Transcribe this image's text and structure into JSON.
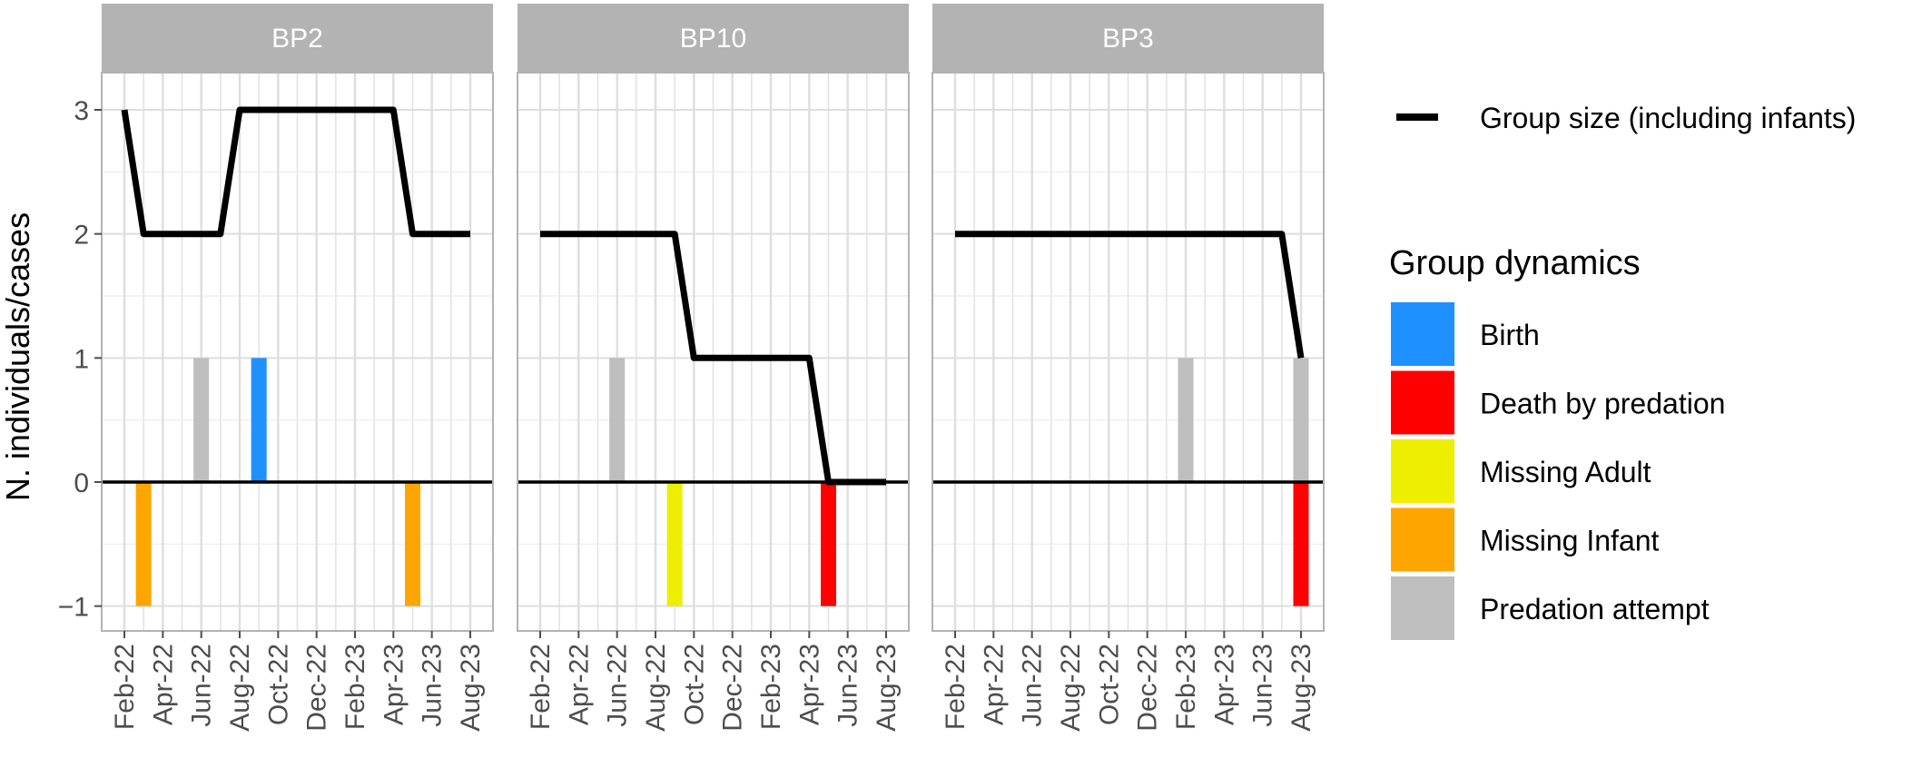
{
  "chart_data": {
    "type": "line",
    "ylabel": "N. individuals/cases",
    "ylim": [
      -1.2,
      3.3
    ],
    "y_ticks": [
      {
        "value": 3,
        "label": "3"
      },
      {
        "value": 2,
        "label": "2"
      },
      {
        "value": 1,
        "label": "1"
      },
      {
        "value": 0,
        "label": "0"
      },
      {
        "value": -1,
        "label": "−1"
      }
    ],
    "x_ticks": [
      {
        "value": "2022-02",
        "label": "Feb-22"
      },
      {
        "value": "2022-04",
        "label": "Apr-22"
      },
      {
        "value": "2022-06",
        "label": "Jun-22"
      },
      {
        "value": "2022-08",
        "label": "Aug-22"
      },
      {
        "value": "2022-10",
        "label": "Oct-22"
      },
      {
        "value": "2022-12",
        "label": "Dec-22"
      },
      {
        "value": "2023-02",
        "label": "Feb-23"
      },
      {
        "value": "2023-04",
        "label": "Apr-23"
      },
      {
        "value": "2023-06",
        "label": "Jun-23"
      },
      {
        "value": "2023-08",
        "label": "Aug-23"
      }
    ],
    "grid": true,
    "legend_position": "right",
    "line_legend_label": "Group size (including infants)",
    "line_color": "#000000",
    "legend_title": "Group dynamics",
    "categories": [
      {
        "name": "Birth",
        "color": "#1E90FF"
      },
      {
        "name": "Death by predation",
        "color": "#FF0000"
      },
      {
        "name": "Missing Adult",
        "color": "#EEEE00"
      },
      {
        "name": "Missing Infant",
        "color": "#FFA500"
      },
      {
        "name": "Predation attempt",
        "color": "#BEBEBE"
      }
    ],
    "facets": [
      {
        "title": "BP2",
        "group_size": [
          {
            "x": "2022-02",
            "y": 3
          },
          {
            "x": "2022-03",
            "y": 2
          },
          {
            "x": "2022-07",
            "y": 2
          },
          {
            "x": "2022-08",
            "y": 3
          },
          {
            "x": "2023-04",
            "y": 3
          },
          {
            "x": "2023-05",
            "y": 2
          },
          {
            "x": "2023-08",
            "y": 2
          }
        ],
        "events": [
          {
            "x": "2022-03",
            "category": "Missing Infant",
            "value": -1
          },
          {
            "x": "2022-06",
            "category": "Predation attempt",
            "value": 1
          },
          {
            "x": "2022-09",
            "category": "Birth",
            "value": 1
          },
          {
            "x": "2023-05",
            "category": "Missing Infant",
            "value": -1
          }
        ]
      },
      {
        "title": "BP10",
        "group_size": [
          {
            "x": "2022-02",
            "y": 2
          },
          {
            "x": "2022-09",
            "y": 2
          },
          {
            "x": "2022-10",
            "y": 1
          },
          {
            "x": "2023-04",
            "y": 1
          },
          {
            "x": "2023-05",
            "y": 0
          },
          {
            "x": "2023-08",
            "y": 0
          }
        ],
        "events": [
          {
            "x": "2022-06",
            "category": "Predation attempt",
            "value": 1
          },
          {
            "x": "2022-09",
            "category": "Missing Adult",
            "value": -1
          },
          {
            "x": "2023-05",
            "category": "Death by predation",
            "value": -1
          }
        ]
      },
      {
        "title": "BP3",
        "group_size": [
          {
            "x": "2022-02",
            "y": 2
          },
          {
            "x": "2023-07",
            "y": 2
          },
          {
            "x": "2023-08",
            "y": 1
          }
        ],
        "events": [
          {
            "x": "2023-02",
            "category": "Predation attempt",
            "value": 1
          },
          {
            "x": "2023-08",
            "category": "Predation attempt",
            "value": 1
          },
          {
            "x": "2023-08",
            "category": "Death by predation",
            "value": -1
          }
        ]
      }
    ]
  }
}
